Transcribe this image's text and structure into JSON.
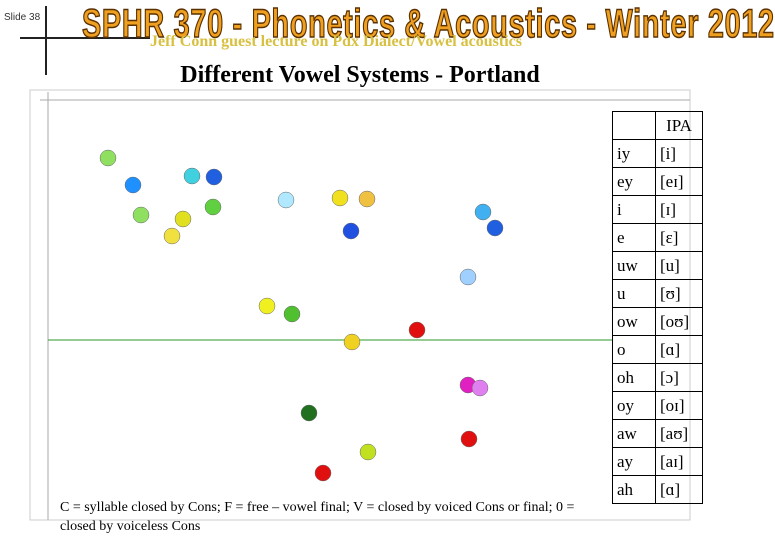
{
  "header": {
    "slide_label": "Slide 38",
    "course_title": "SPHR 370 - Phonetics & Acoustics - Winter 2012",
    "subtitle": "Jeff Conn guest lecture on Pdx Dialect/Vowel acoustics"
  },
  "title": "Different Vowel Systems - Portland",
  "table": {
    "header": "IPA",
    "rows": [
      [
        "iy",
        "[i]"
      ],
      [
        "ey",
        "[eɪ]"
      ],
      [
        "i",
        "[ɪ]"
      ],
      [
        "e",
        "[ɛ]"
      ],
      [
        "uw",
        "[u]"
      ],
      [
        "u",
        "[ʊ]"
      ],
      [
        "ow",
        "[oʊ]"
      ],
      [
        "o",
        "[ɑ]"
      ],
      [
        "oh",
        "[ɔ]"
      ],
      [
        "oy",
        "[oɪ]"
      ],
      [
        "aw",
        "[aʊ]"
      ],
      [
        "ay",
        "[aɪ]"
      ],
      [
        "ah",
        "[ɑ]"
      ]
    ]
  },
  "caption": "C = syllable closed by Cons; F = free – vowel final; V = closed by voiced Cons or final; 0 = closed by voiceless Cons"
}
